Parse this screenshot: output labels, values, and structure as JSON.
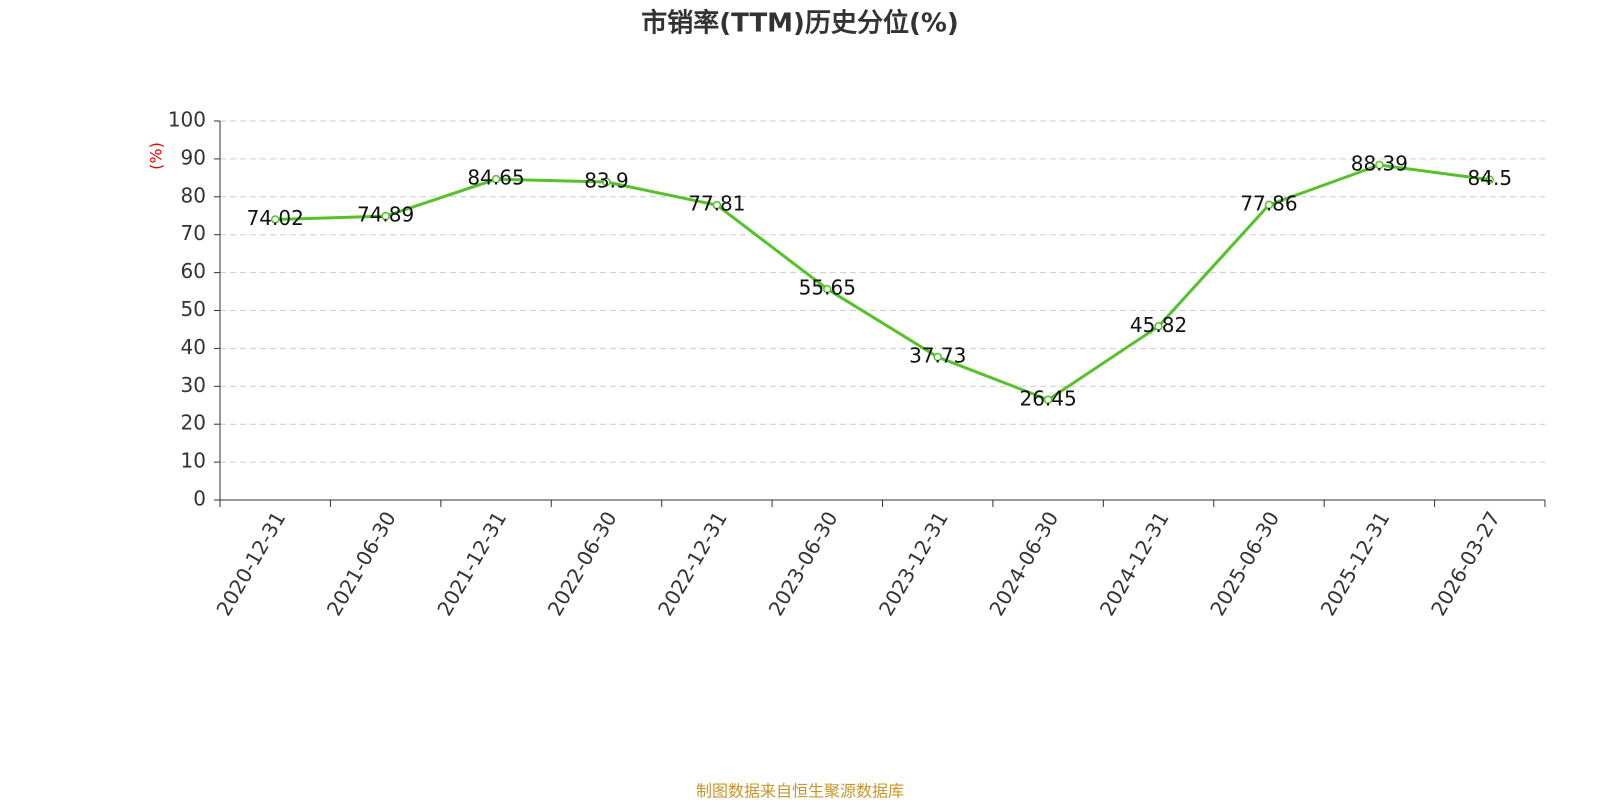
{
  "chart_data": {
    "type": "line",
    "title": "市销率(TTM)历史分位(%)",
    "y_label": "(%)",
    "footer": "制图数据来自恒生聚源数据库",
    "categories": [
      "2020-12-31",
      "2021-06-30",
      "2021-12-31",
      "2022-06-30",
      "2022-12-31",
      "2023-06-30",
      "2023-12-31",
      "2024-06-30",
      "2024-12-31",
      "2025-06-30",
      "2025-12-31",
      "2026-03-27"
    ],
    "values": [
      74.02,
      74.89,
      84.65,
      83.9,
      77.81,
      55.65,
      37.73,
      26.45,
      45.82,
      77.86,
      88.39,
      84.5
    ],
    "color": "#55c22a",
    "ylim": [
      0,
      100
    ],
    "yticks": [
      0,
      10,
      20,
      30,
      40,
      50,
      60,
      70,
      80,
      90,
      100
    ],
    "grid": true
  }
}
